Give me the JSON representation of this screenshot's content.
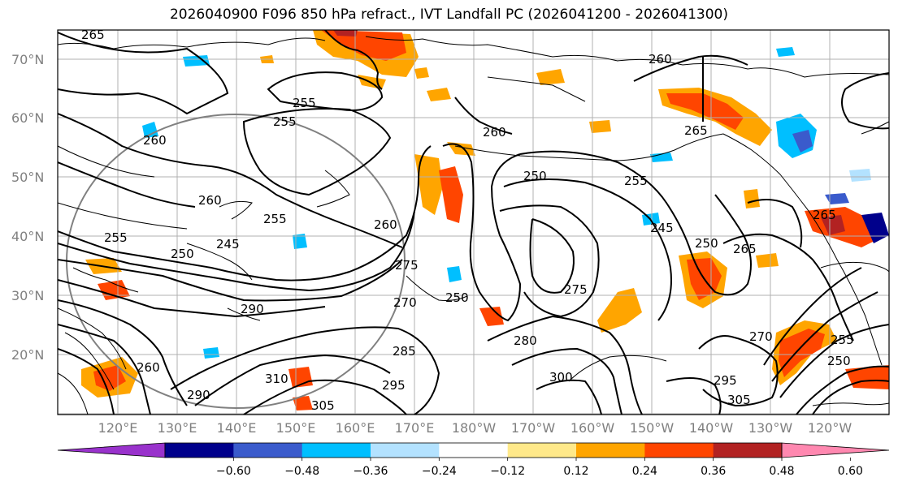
{
  "title": "2026040900 F096 850 hPa refract., IVT Landfall PC (2026041200 - 2026041300)",
  "lat_labels": [
    "20°N",
    "30°N",
    "40°N",
    "50°N",
    "60°N",
    "70°N"
  ],
  "lon_labels": [
    "120°E",
    "130°E",
    "140°E",
    "150°E",
    "160°E",
    "170°E",
    "180°W",
    "170°W",
    "160°W",
    "150°W",
    "140°W",
    "130°W",
    "120°W"
  ],
  "colorbar": {
    "colors": [
      "#9932CC",
      "#00008B",
      "#3A5BCC",
      "#00BFFF",
      "#B3E2FF",
      "#FFFFFF",
      "#FFE98A",
      "#FFA500",
      "#FF4500",
      "#B22222",
      "#FF88B0"
    ],
    "tick_labels": [
      "−0.60",
      "−0.48",
      "−0.36",
      "−0.24",
      "−0.12",
      "0.12",
      "0.24",
      "0.36",
      "0.48",
      "0.60"
    ]
  },
  "contour_labels": [
    "265",
    "260",
    "255",
    "255",
    "260",
    "250",
    "255",
    "260",
    "265",
    "255",
    "250",
    "245",
    "250",
    "265",
    "260",
    "255",
    "260",
    "270",
    "275",
    "250",
    "275",
    "280",
    "285",
    "295",
    "290",
    "300",
    "305",
    "310",
    "265",
    "270",
    "260",
    "255",
    "250",
    "295",
    "305",
    "290",
    "245"
  ]
}
